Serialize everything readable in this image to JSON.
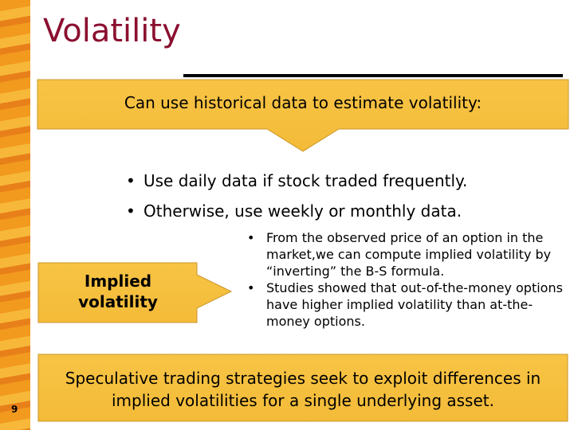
{
  "header": {
    "title": "Volatility"
  },
  "callout": {
    "text": "Can use historical data to estimate volatility:"
  },
  "bullets": [
    "Use daily data if stock traded frequently.",
    "Otherwise, use weekly or monthly data."
  ],
  "implied_box": {
    "lines": [
      "Implied",
      "volatility"
    ]
  },
  "implied_bullets": [
    "From the observed price of an option in the market,we can compute implied volatility by “inverting” the B-S formula.",
    "Studies showed that out-of-the-money options have higher implied volatility than at-the-money options."
  ],
  "conclusion": {
    "text": "Speculative trading strategies seek to exploit differences in implied volatilities for a single underlying asset."
  },
  "footer": {
    "page_number": "9"
  }
}
